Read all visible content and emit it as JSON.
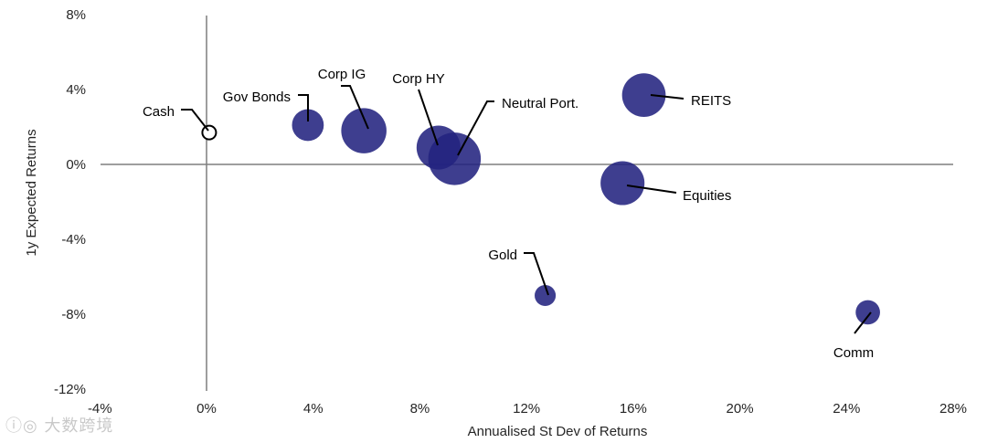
{
  "chart_data": {
    "type": "scatter",
    "title": "",
    "xlabel": "Annualised St Dev of Returns",
    "ylabel": "1y Expected Returns",
    "xlim": [
      -4,
      28
    ],
    "ylim": [
      -12,
      8
    ],
    "x_ticks": [
      -4,
      0,
      4,
      8,
      12,
      16,
      20,
      24,
      28
    ],
    "y_ticks": [
      8,
      4,
      0,
      -4,
      -8,
      -12
    ],
    "x_tick_labels": [
      "-4%",
      "0%",
      "4%",
      "8%",
      "12%",
      "16%",
      "20%",
      "24%",
      "28%"
    ],
    "y_tick_labels": [
      "8%",
      "4%",
      "0%",
      "-4%",
      "-8%",
      "-12%"
    ],
    "grid": false,
    "bubble_color": "#23237f",
    "points": [
      {
        "label": "Cash",
        "x": 0.1,
        "y": 1.7,
        "size": 1,
        "hollow": true
      },
      {
        "label": "Gov Bonds",
        "x": 3.8,
        "y": 2.1,
        "size": 3.4
      },
      {
        "label": "Corp IG",
        "x": 5.9,
        "y": 1.8,
        "size": 6.9
      },
      {
        "label": "Corp HY",
        "x": 8.7,
        "y": 0.9,
        "size": 6.5
      },
      {
        "label": "Neutral Port.",
        "x": 9.3,
        "y": 0.3,
        "size": 9.3
      },
      {
        "label": "REITS",
        "x": 16.4,
        "y": 3.7,
        "size": 6.4
      },
      {
        "label": "Equities",
        "x": 15.6,
        "y": -1.0,
        "size": 6.5
      },
      {
        "label": "Gold",
        "x": 12.7,
        "y": -7.0,
        "size": 1.5
      },
      {
        "label": "Comm",
        "x": 24.8,
        "y": -7.9,
        "size": 2.0
      }
    ]
  },
  "watermark": "ⓘ◎ 大数跨境"
}
